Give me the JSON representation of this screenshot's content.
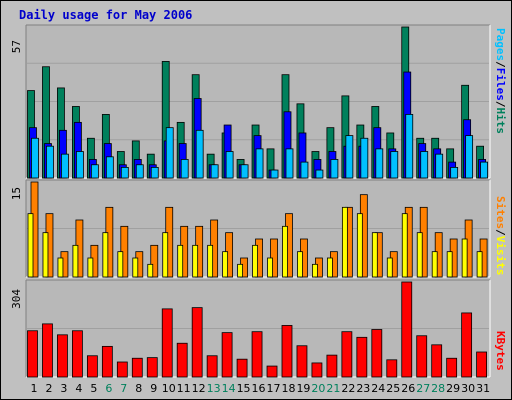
{
  "title": "Daily usage for May 2006",
  "colors": {
    "hits": "#00805c",
    "files": "#0000ff",
    "pages": "#00c0ff",
    "visits": "#ff8000",
    "sites": "#ffff00",
    "kbytes": "#ff0000",
    "weekend_tick": "#00805c",
    "weekday_tick": "#000000"
  },
  "panels": {
    "top": {
      "max_label": "57",
      "right_label": [
        "Pages",
        "/",
        "Files",
        "/",
        "Hits"
      ]
    },
    "middle": {
      "max_label": "15",
      "right_label": [
        "Sites",
        "/",
        "Visits"
      ]
    },
    "bottom": {
      "max_label": "304",
      "right_label": [
        "KBytes"
      ]
    }
  },
  "chart_data": [
    {
      "type": "bar",
      "categories": [
        "1",
        "2",
        "3",
        "4",
        "5",
        "6",
        "7",
        "8",
        "9",
        "10",
        "11",
        "12",
        "13",
        "14",
        "15",
        "16",
        "17",
        "18",
        "19",
        "20",
        "21",
        "22",
        "23",
        "24",
        "25",
        "26",
        "27",
        "28",
        "29",
        "30",
        "31"
      ],
      "weekend_days": [
        "6",
        "7",
        "13",
        "14",
        "20",
        "21",
        "27",
        "28"
      ],
      "ylim": [
        0,
        57
      ],
      "series": [
        {
          "name": "Hits",
          "values": [
            33,
            42,
            34,
            27,
            15,
            24,
            10,
            14,
            9,
            44,
            21,
            39,
            9,
            17,
            7,
            20,
            11,
            39,
            28,
            10,
            19,
            31,
            20,
            27,
            17,
            57,
            15,
            15,
            11,
            35,
            12
          ]
        },
        {
          "name": "Files",
          "values": [
            19,
            13,
            18,
            21,
            7,
            13,
            5,
            7,
            5,
            14,
            13,
            30,
            5,
            20,
            5,
            16,
            3,
            25,
            17,
            7,
            10,
            12,
            12,
            19,
            11,
            40,
            13,
            11,
            6,
            22,
            7
          ]
        },
        {
          "name": "Pages",
          "values": [
            15,
            12,
            9,
            10,
            5,
            8,
            4,
            5,
            4,
            19,
            7,
            18,
            5,
            10,
            5,
            11,
            3,
            11,
            6,
            3,
            7,
            16,
            15,
            11,
            10,
            24,
            10,
            9,
            4,
            16,
            6
          ]
        }
      ]
    },
    {
      "type": "bar",
      "categories": [
        "1",
        "2",
        "3",
        "4",
        "5",
        "6",
        "7",
        "8",
        "9",
        "10",
        "11",
        "12",
        "13",
        "14",
        "15",
        "16",
        "17",
        "18",
        "19",
        "20",
        "21",
        "22",
        "23",
        "24",
        "25",
        "26",
        "27",
        "28",
        "29",
        "30",
        "31"
      ],
      "ylim": [
        0,
        15
      ],
      "series": [
        {
          "name": "Visits",
          "values": [
            15,
            10,
            4,
            9,
            5,
            11,
            8,
            4,
            5,
            11,
            8,
            8,
            9,
            7,
            3,
            6,
            6,
            10,
            6,
            3,
            4,
            11,
            13,
            7,
            4,
            11,
            11,
            7,
            6,
            9,
            6
          ]
        },
        {
          "name": "Sites",
          "values": [
            10,
            7,
            3,
            5,
            3,
            7,
            4,
            3,
            2,
            7,
            5,
            5,
            5,
            4,
            2,
            5,
            3,
            8,
            4,
            2,
            3,
            11,
            10,
            7,
            3,
            10,
            7,
            4,
            4,
            6,
            4
          ]
        }
      ]
    },
    {
      "type": "bar",
      "categories": [
        "1",
        "2",
        "3",
        "4",
        "5",
        "6",
        "7",
        "8",
        "9",
        "10",
        "11",
        "12",
        "13",
        "14",
        "15",
        "16",
        "17",
        "18",
        "19",
        "20",
        "21",
        "22",
        "23",
        "24",
        "25",
        "26",
        "27",
        "28",
        "29",
        "30",
        "31"
      ],
      "ylim": [
        0,
        304
      ],
      "series": [
        {
          "name": "KBytes",
          "values": [
            148,
            170,
            135,
            148,
            68,
            98,
            48,
            60,
            62,
            218,
            108,
            222,
            68,
            142,
            57,
            145,
            35,
            165,
            100,
            45,
            70,
            145,
            127,
            152,
            55,
            304,
            132,
            103,
            60,
            205,
            80
          ]
        }
      ]
    }
  ]
}
